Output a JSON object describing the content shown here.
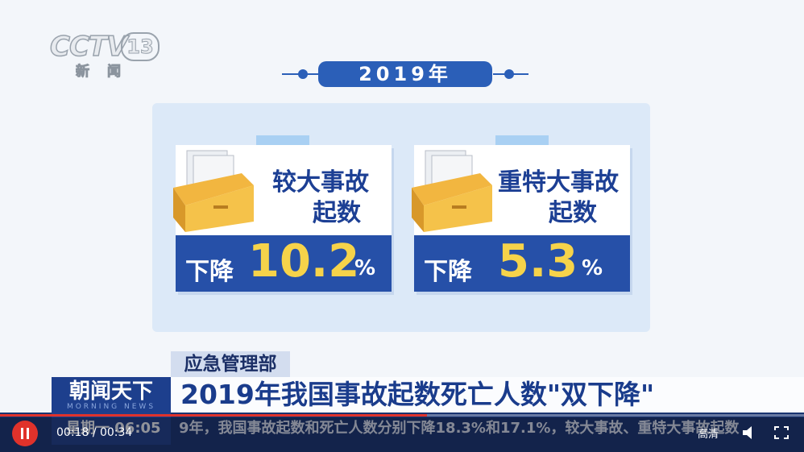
{
  "logo": {
    "channel": "CCTV",
    "number": "13",
    "sub": "新闻"
  },
  "infographic": {
    "year": "2019年",
    "cards": [
      {
        "title_lines": [
          "较大事故",
          "起数"
        ],
        "drop_label": "下降",
        "value": "10.2",
        "unit": "%"
      },
      {
        "title_lines": [
          "重特大事故",
          "起数"
        ],
        "drop_label": "下降",
        "value": "5.3",
        "unit": "%"
      }
    ]
  },
  "lower_third": {
    "department": "应急管理部",
    "program": "朝闻天下",
    "program_en": "MORNING NEWS",
    "headline": "2019年我国事故起数死亡人数\"双下降\"",
    "weekday": "星期一",
    "clock": "06:05",
    "ticker": "9年，我国事故起数和死亡人数分别下降18.3%和17.1%，较大事故、重特大事故起数"
  },
  "player": {
    "current": "00:18",
    "separator": "/",
    "duration": "00:34",
    "quality": "高清"
  }
}
